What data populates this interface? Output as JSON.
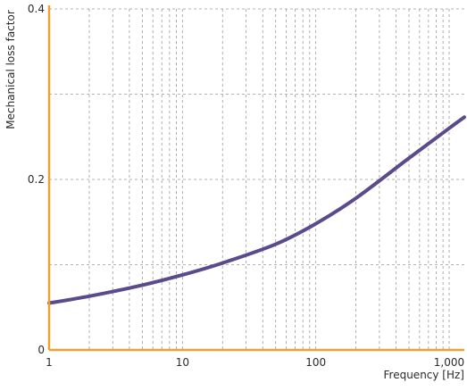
{
  "chart_data": {
    "type": "line",
    "title": "",
    "xlabel": "Frequency [Hz]",
    "ylabel": "Mechanical loss factor",
    "x_scale": "log",
    "xlim": [
      1,
      1300
    ],
    "ylim": [
      0,
      0.4
    ],
    "x_ticks": [
      {
        "value": 1,
        "label": "1"
      },
      {
        "value": 10,
        "label": "10"
      },
      {
        "value": 100,
        "label": "100"
      },
      {
        "value": 1000,
        "label": "1,000"
      }
    ],
    "y_ticks": [
      {
        "value": 0,
        "label": "0"
      },
      {
        "value": 0.2,
        "label": "0.2"
      },
      {
        "value": 0.4,
        "label": "0.4"
      }
    ],
    "y_minor_gridlines": [
      0.1,
      0.3
    ],
    "grid": true,
    "legend": "none",
    "series": [
      {
        "color": "#5b4a8c",
        "x": [
          1,
          2,
          5,
          10,
          20,
          50,
          100,
          200,
          500,
          1000,
          1300
        ],
        "y": [
          0.055,
          0.063,
          0.076,
          0.088,
          0.102,
          0.124,
          0.148,
          0.178,
          0.225,
          0.26,
          0.273
        ]
      }
    ],
    "colors": {
      "axis": "#f0a030",
      "grid": "#9a9a9a",
      "line": "#5b4a8c"
    }
  }
}
